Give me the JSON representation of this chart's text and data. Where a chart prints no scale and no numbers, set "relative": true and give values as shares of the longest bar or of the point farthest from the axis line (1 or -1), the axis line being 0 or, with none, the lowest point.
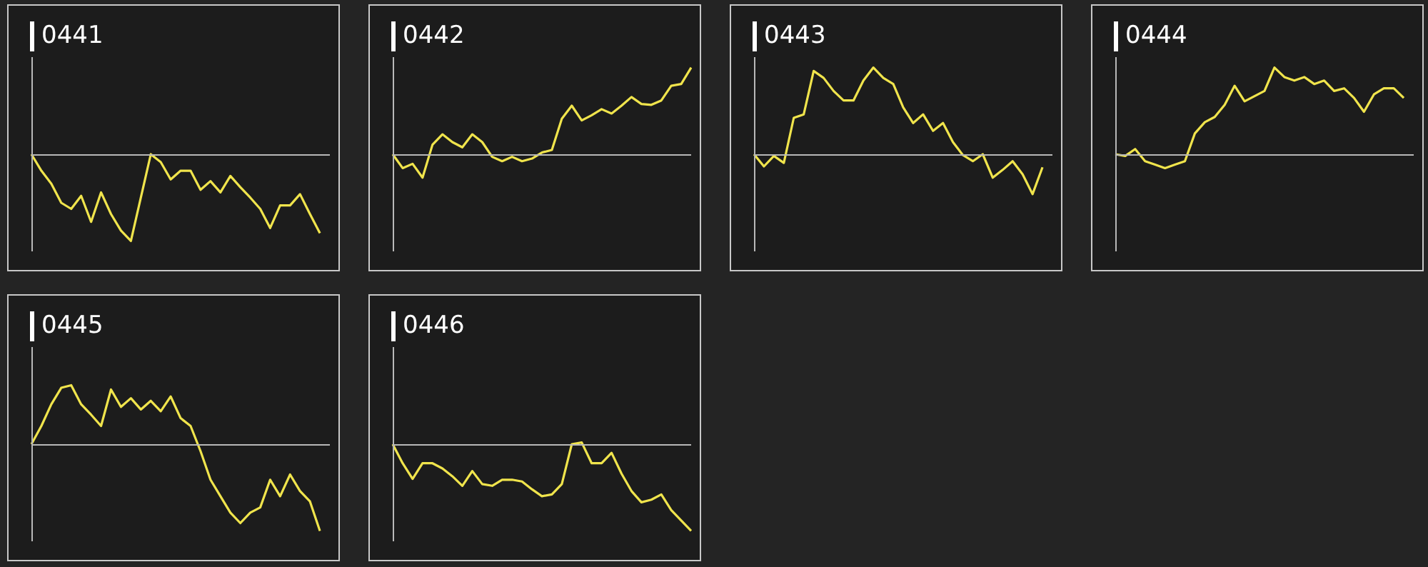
{
  "chart_data": [
    {
      "type": "line",
      "title": "0441",
      "relative": true,
      "categories": [
        null,
        null,
        null,
        null,
        null,
        null,
        null,
        null,
        null,
        null,
        null,
        null,
        null,
        null,
        null,
        null,
        null,
        null,
        null,
        null,
        null,
        null,
        null,
        null,
        null,
        null,
        null,
        null,
        null,
        null,
        null
      ],
      "series": [
        {
          "color": "#f0e44c",
          "values": [
            0,
            -0.19,
            -0.34,
            -0.56,
            -0.63,
            -0.48,
            -0.78,
            -0.44,
            -0.69,
            -0.88,
            -1,
            -0.5,
            0,
            -0.09,
            -0.29,
            -0.19,
            -0.19,
            -0.41,
            -0.31,
            -0.44,
            -0.25,
            -0.38,
            -0.5,
            -0.63,
            -0.85,
            -0.59,
            -0.59,
            -0.46,
            -0.69,
            -0.91,
            null
          ]
        }
      ]
    },
    {
      "type": "line",
      "title": "0442",
      "relative": true,
      "categories": [
        null,
        null,
        null,
        null,
        null,
        null,
        null,
        null,
        null,
        null,
        null,
        null,
        null,
        null,
        null,
        null,
        null,
        null,
        null,
        null,
        null,
        null,
        null,
        null,
        null,
        null,
        null,
        null,
        null,
        null,
        null
      ],
      "series": [
        {
          "color": "#f0e44c",
          "values": [
            0,
            -0.16,
            -0.11,
            -0.27,
            0.11,
            0.23,
            0.14,
            0.08,
            0.23,
            0.14,
            -0.03,
            -0.08,
            -0.03,
            -0.08,
            -0.05,
            0.02,
            0.05,
            0.41,
            0.56,
            0.39,
            0.45,
            0.52,
            0.47,
            0.56,
            0.66,
            0.58,
            0.57,
            0.62,
            0.79,
            0.81,
            1
          ]
        }
      ]
    },
    {
      "type": "line",
      "title": "0443",
      "relative": true,
      "categories": [
        null,
        null,
        null,
        null,
        null,
        null,
        null,
        null,
        null,
        null,
        null,
        null,
        null,
        null,
        null,
        null,
        null,
        null,
        null,
        null,
        null,
        null,
        null,
        null,
        null,
        null,
        null,
        null,
        null,
        null,
        null
      ],
      "series": [
        {
          "color": "#f0e44c",
          "values": [
            0,
            -0.14,
            -0.02,
            -0.1,
            0.42,
            0.46,
            0.96,
            0.88,
            0.73,
            0.62,
            0.62,
            0.85,
            1,
            0.88,
            0.81,
            0.54,
            0.36,
            0.46,
            0.27,
            0.36,
            0.14,
            -0.01,
            -0.08,
            0,
            -0.27,
            -0.18,
            -0.08,
            -0.23,
            -0.46,
            -0.15,
            null
          ]
        }
      ]
    },
    {
      "type": "line",
      "title": "0444",
      "relative": true,
      "categories": [
        null,
        null,
        null,
        null,
        null,
        null,
        null,
        null,
        null,
        null,
        null,
        null,
        null,
        null,
        null,
        null,
        null,
        null,
        null,
        null,
        null,
        null,
        null,
        null,
        null,
        null,
        null,
        null,
        null,
        null,
        null
      ],
      "series": [
        {
          "color": "#f0e44c",
          "values": [
            0,
            -0.02,
            0.06,
            -0.08,
            -0.12,
            -0.16,
            -0.12,
            -0.08,
            0.24,
            0.37,
            0.43,
            0.57,
            0.79,
            0.61,
            0.67,
            0.73,
            1,
            0.89,
            0.85,
            0.89,
            0.81,
            0.85,
            0.73,
            0.76,
            0.65,
            0.49,
            0.69,
            0.76,
            0.76,
            0.65,
            null
          ]
        }
      ]
    },
    {
      "type": "line",
      "title": "0445",
      "relative": true,
      "categories": [
        null,
        null,
        null,
        null,
        null,
        null,
        null,
        null,
        null,
        null,
        null,
        null,
        null,
        null,
        null,
        null,
        null,
        null,
        null,
        null,
        null,
        null,
        null,
        null,
        null,
        null,
        null,
        null,
        null,
        null,
        null
      ],
      "series": [
        {
          "color": "#f0e44c",
          "values": [
            0,
            0.21,
            0.46,
            0.65,
            0.68,
            0.46,
            0.34,
            0.21,
            0.63,
            0.43,
            0.53,
            0.4,
            0.5,
            0.38,
            0.55,
            0.3,
            0.21,
            -0.08,
            -0.41,
            -0.6,
            -0.79,
            -0.91,
            -0.79,
            -0.73,
            -0.41,
            -0.6,
            -0.35,
            -0.54,
            -0.66,
            -1,
            null
          ]
        }
      ]
    },
    {
      "type": "line",
      "title": "0446",
      "relative": true,
      "categories": [
        null,
        null,
        null,
        null,
        null,
        null,
        null,
        null,
        null,
        null,
        null,
        null,
        null,
        null,
        null,
        null,
        null,
        null,
        null,
        null,
        null,
        null,
        null,
        null,
        null,
        null,
        null,
        null,
        null,
        null,
        null
      ],
      "series": [
        {
          "color": "#f0e44c",
          "values": [
            0,
            -0.22,
            -0.4,
            -0.22,
            -0.22,
            -0.28,
            -0.37,
            -0.48,
            -0.31,
            -0.46,
            -0.48,
            -0.41,
            -0.41,
            -0.43,
            -0.52,
            -0.6,
            -0.58,
            -0.46,
            0,
            0.02,
            -0.22,
            -0.22,
            -0.1,
            -0.34,
            -0.54,
            -0.67,
            -0.64,
            -0.58,
            -0.76,
            -0.88,
            -1
          ]
        }
      ]
    }
  ]
}
